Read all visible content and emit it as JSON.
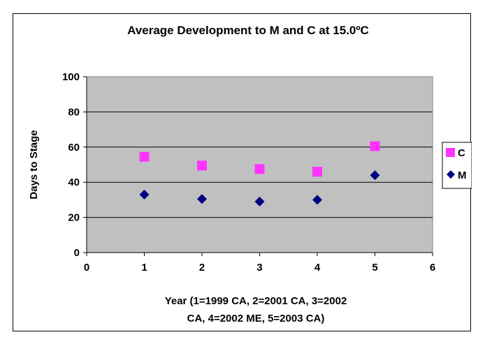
{
  "chart_data": {
    "type": "scatter",
    "title": "Average Development to M and C at 15.0ºC",
    "xlabel_lines": [
      "Year (1=1999 CA, 2=2001 CA, 3=2002",
      "CA, 4=2002 ME, 5=2003 CA)"
    ],
    "ylabel": "Days to Stage",
    "xlim": [
      0,
      6
    ],
    "ylim": [
      0,
      100
    ],
    "x_ticks": [
      0,
      1,
      2,
      3,
      4,
      5,
      6
    ],
    "y_ticks": [
      0,
      20,
      40,
      60,
      80,
      100
    ],
    "grid": "horizontal",
    "plot_background": "#c0c0c0",
    "legend_position": "right",
    "series": [
      {
        "name": "C",
        "marker": "square",
        "color": "#ff33ff",
        "points": [
          [
            1,
            54.5
          ],
          [
            2,
            49.5
          ],
          [
            3,
            47.5
          ],
          [
            4,
            46
          ],
          [
            5,
            60.5
          ]
        ]
      },
      {
        "name": "M",
        "marker": "diamond",
        "color": "#000080",
        "points": [
          [
            1,
            33
          ],
          [
            2,
            30.5
          ],
          [
            3,
            29
          ],
          [
            4,
            30
          ],
          [
            5,
            44
          ]
        ]
      }
    ]
  }
}
